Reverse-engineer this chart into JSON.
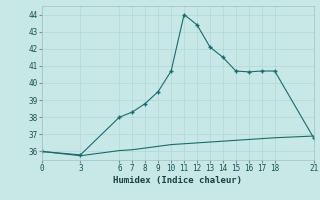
{
  "title": "",
  "xlabel": "Humidex (Indice chaleur)",
  "background_color": "#c8e8e8",
  "grid_color": "#b0d8d8",
  "line_color": "#1a6b6b",
  "line1_x": [
    0,
    3,
    6,
    7,
    8,
    9,
    10,
    11,
    12,
    13,
    14,
    15,
    16,
    17,
    18,
    21
  ],
  "line1_y": [
    36.0,
    35.8,
    38.0,
    38.3,
    38.8,
    39.5,
    40.7,
    44.0,
    43.4,
    42.1,
    41.5,
    40.7,
    40.65,
    40.7,
    40.7,
    36.8
  ],
  "line2_x": [
    0,
    3,
    6,
    7,
    8,
    9,
    10,
    11,
    12,
    13,
    14,
    15,
    16,
    17,
    18,
    21
  ],
  "line2_y": [
    36.0,
    35.75,
    36.05,
    36.1,
    36.2,
    36.3,
    36.4,
    36.45,
    36.5,
    36.55,
    36.6,
    36.65,
    36.7,
    36.75,
    36.8,
    36.9
  ],
  "xlim": [
    0,
    21
  ],
  "ylim": [
    35.5,
    44.5
  ],
  "yticks": [
    36,
    37,
    38,
    39,
    40,
    41,
    42,
    43,
    44
  ],
  "xticks": [
    0,
    3,
    6,
    7,
    8,
    9,
    10,
    11,
    12,
    13,
    14,
    15,
    16,
    17,
    18,
    21
  ],
  "tick_fontsize": 5.5,
  "label_fontsize": 6.5,
  "figsize": [
    3.2,
    2.0
  ],
  "dpi": 100
}
